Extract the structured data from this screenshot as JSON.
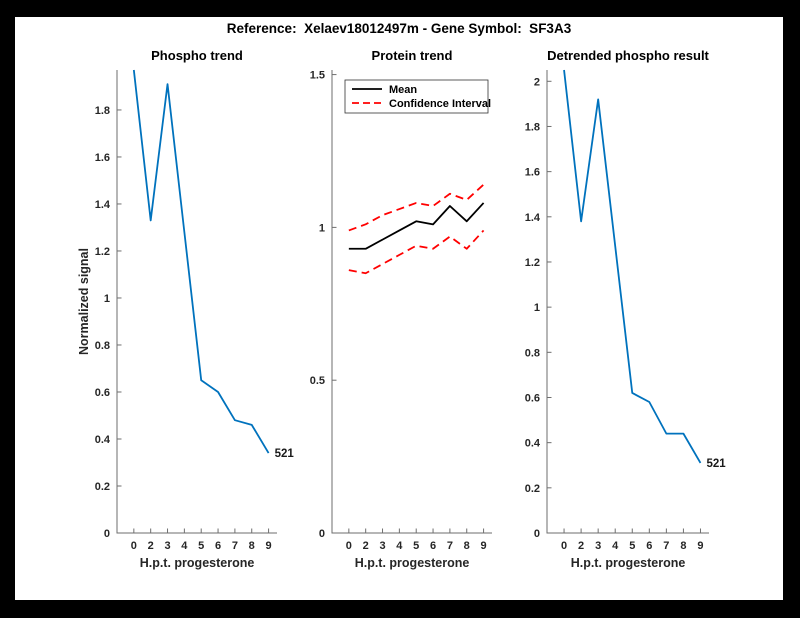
{
  "suptitle": "Reference:  Xelaev18012497m - Gene Symbol:  SF3A3",
  "colors": {
    "page_background": "#000000",
    "figure_background": "#ffffff",
    "axis": "#6e6e6e",
    "tick_text": "#262626",
    "matlab_blue": "#0072BD",
    "confidence_red": "#ff0000",
    "mean_black": "#000000"
  },
  "chart_data": [
    {
      "type": "line",
      "title": "Phospho trend",
      "xlabel": "H.p.t. progesterone",
      "ylabel": "Normalized signal",
      "x_tick_labels": [
        "0",
        "2",
        "3",
        "4",
        "5",
        "6",
        "7",
        "8",
        "9"
      ],
      "ylim": [
        0,
        1.97
      ],
      "yticks": [
        0,
        0.2,
        0.4,
        0.6,
        0.8,
        1,
        1.2,
        1.4,
        1.6,
        1.8
      ],
      "grid": false,
      "legend": null,
      "series": [
        {
          "name": "phospho-signal",
          "color": "#0072BD",
          "dash": "solid",
          "values": [
            1.97,
            1.33,
            1.91,
            1.28,
            0.65,
            0.6,
            0.48,
            0.46,
            0.34
          ]
        }
      ],
      "annotation": {
        "text": "521"
      }
    },
    {
      "type": "line",
      "title": "Protein trend",
      "xlabel": "H.p.t. progesterone",
      "ylabel": "",
      "x_tick_labels": [
        "0",
        "2",
        "3",
        "4",
        "5",
        "6",
        "7",
        "8",
        "9"
      ],
      "ylim": [
        0,
        1.515
      ],
      "yticks": [
        0,
        0.5,
        1,
        1.5
      ],
      "grid": false,
      "legend": {
        "position": "top-left",
        "entries": [
          {
            "label": "Mean",
            "color": "#000000",
            "dash": "solid"
          },
          {
            "label": "Confidence Interval",
            "color": "#ff0000",
            "dash": "dashed"
          }
        ]
      },
      "series": [
        {
          "name": "mean",
          "color": "#000000",
          "dash": "solid",
          "values": [
            0.93,
            0.93,
            0.96,
            0.99,
            1.02,
            1.01,
            1.07,
            1.02,
            1.08
          ]
        },
        {
          "name": "confidence-upper",
          "color": "#ff0000",
          "dash": "dashed",
          "values": [
            0.99,
            1.01,
            1.04,
            1.06,
            1.08,
            1.07,
            1.11,
            1.09,
            1.14
          ]
        },
        {
          "name": "confidence-lower",
          "color": "#ff0000",
          "dash": "dashed",
          "values": [
            0.86,
            0.85,
            0.88,
            0.91,
            0.94,
            0.93,
            0.97,
            0.93,
            0.99
          ]
        }
      ],
      "annotation": null
    },
    {
      "type": "line",
      "title": "Detrended phospho result",
      "xlabel": "H.p.t. progesterone",
      "ylabel": "",
      "x_tick_labels": [
        "0",
        "2",
        "3",
        "4",
        "5",
        "6",
        "7",
        "8",
        "9"
      ],
      "ylim": [
        0,
        2.05
      ],
      "yticks": [
        0,
        0.2,
        0.4,
        0.6,
        0.8,
        1,
        1.2,
        1.4,
        1.6,
        1.8,
        2
      ],
      "grid": false,
      "legend": null,
      "series": [
        {
          "name": "detrended-phospho",
          "color": "#0072BD",
          "dash": "solid",
          "values": [
            2.05,
            1.38,
            1.92,
            1.27,
            0.62,
            0.58,
            0.44,
            0.44,
            0.31
          ]
        }
      ],
      "annotation": {
        "text": "521"
      }
    }
  ]
}
